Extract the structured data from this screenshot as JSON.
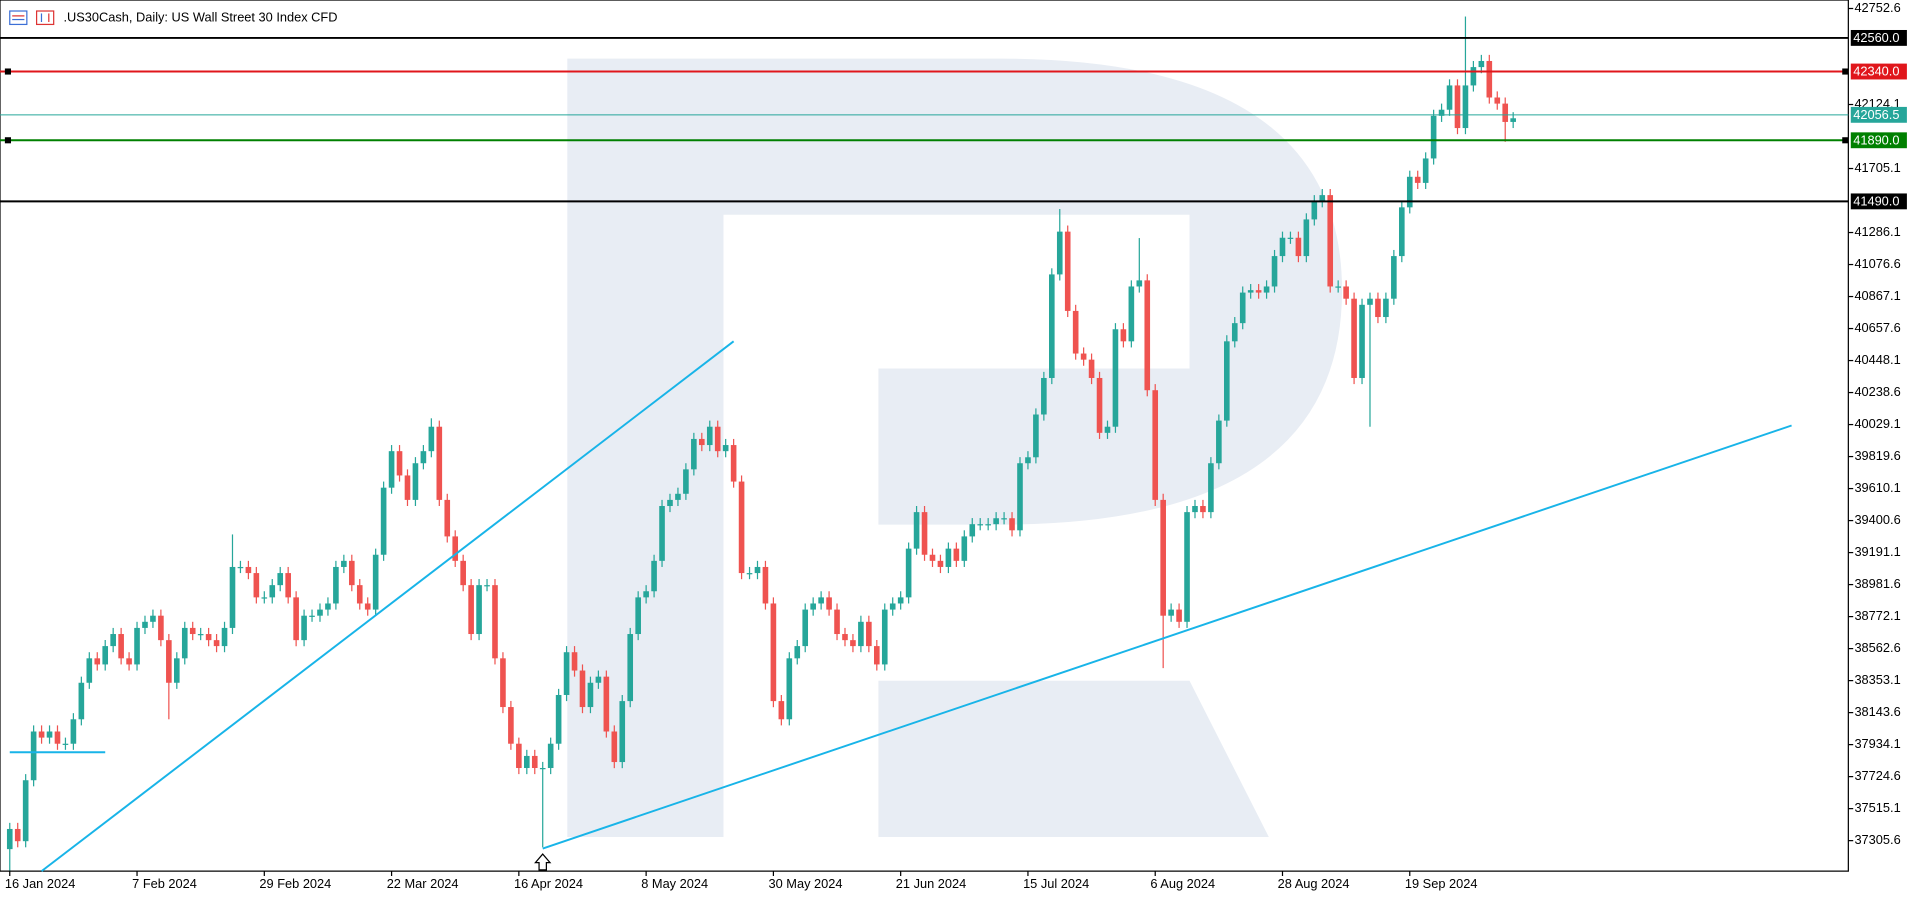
{
  "chart_data": {
    "type": "candlestick",
    "title": ".US30Cash, Daily:  US Wall Street 30 Index CFD",
    "bull_color": "#26a69a",
    "bear_color": "#ef5350",
    "ylim": [
      37106,
      42808
    ],
    "yticks": [
      42752.6,
      42124.1,
      41705.1,
      41286.1,
      41076.6,
      40867.1,
      40657.6,
      40448.1,
      40238.6,
      40029.1,
      39819.6,
      39610.1,
      39400.6,
      39191.1,
      38981.6,
      38772.1,
      38562.6,
      38353.1,
      38143.6,
      37934.1,
      37724.6,
      37515.1,
      37305.6
    ],
    "categories": [
      "16 Jan 2024",
      null,
      null,
      null,
      null,
      null,
      null,
      null,
      null,
      null,
      null,
      null,
      null,
      null,
      null,
      null,
      "7 Feb 2024",
      null,
      null,
      null,
      null,
      null,
      null,
      null,
      null,
      null,
      null,
      null,
      null,
      null,
      null,
      null,
      "29 Feb 2024",
      null,
      null,
      null,
      null,
      null,
      null,
      null,
      null,
      null,
      null,
      null,
      null,
      null,
      null,
      null,
      "22 Mar 2024",
      null,
      null,
      null,
      null,
      null,
      null,
      null,
      null,
      null,
      null,
      null,
      null,
      null,
      null,
      null,
      "16 Apr 2024",
      null,
      null,
      null,
      null,
      null,
      null,
      null,
      null,
      null,
      null,
      null,
      null,
      null,
      null,
      null,
      "8 May 2024",
      null,
      null,
      null,
      null,
      null,
      null,
      null,
      null,
      null,
      null,
      null,
      null,
      null,
      null,
      null,
      "30 May 2024",
      null,
      null,
      null,
      null,
      null,
      null,
      null,
      null,
      null,
      null,
      null,
      null,
      null,
      null,
      null,
      "21 Jun 2024",
      null,
      null,
      null,
      null,
      null,
      null,
      null,
      null,
      null,
      null,
      null,
      null,
      null,
      null,
      null,
      "15 Jul 2024",
      null,
      null,
      null,
      null,
      null,
      null,
      null,
      null,
      null,
      null,
      null,
      null,
      null,
      null,
      null,
      "6 Aug 2024",
      null,
      null,
      null,
      null,
      null,
      null,
      null,
      null,
      null,
      null,
      null,
      null,
      null,
      null,
      null,
      "28 Aug 2024",
      null,
      null,
      null,
      null,
      null,
      null,
      null,
      null,
      null,
      null,
      null,
      null,
      null,
      null,
      null,
      "19 Sep 2024",
      null,
      null,
      null,
      null,
      null,
      null,
      null,
      null,
      null,
      null,
      null,
      null,
      null
    ],
    "open": [
      37250,
      37382,
      37302,
      37701,
      38020,
      37980,
      38020,
      37940,
      37940,
      38100,
      38339,
      38499,
      38459,
      38579,
      38658,
      38499,
      38459,
      38698,
      38738,
      38778,
      38618,
      38339,
      38499,
      38698,
      38658,
      38658,
      38618,
      38579,
      38698,
      39097,
      39097,
      39057,
      38898,
      38898,
      38978,
      39057,
      38898,
      38618,
      38778,
      38778,
      38818,
      38858,
      39097,
      39137,
      38978,
      38858,
      38818,
      39177,
      39616,
      39855,
      39696,
      39536,
      39776,
      39855,
      40015,
      39536,
      39297,
      39137,
      38978,
      38658,
      38978,
      38978,
      38499,
      38180,
      37940,
      37781,
      37860,
      37781,
      37781,
      37940,
      38259,
      38539,
      38419,
      38180,
      38339,
      38379,
      38020,
      37820,
      38219,
      38658,
      38898,
      38938,
      39137,
      39496,
      39536,
      39576,
      39736,
      39935,
      39895,
      40015,
      39855,
      39895,
      39656,
      39057,
      39057,
      39097,
      38858,
      38219,
      38100,
      38499,
      38579,
      38818,
      38858,
      38898,
      38818,
      38658,
      38618,
      38579,
      38738,
      38579,
      38459,
      38818,
      38858,
      38898,
      39217,
      39456,
      39177,
      39137,
      39097,
      39217,
      39137,
      39297,
      39377,
      39377,
      39377,
      39416,
      39416,
      39337,
      39776,
      39815,
      40095,
      40334,
      41012,
      41292,
      40773,
      40494,
      40454,
      40334,
      39975,
      40015,
      40653,
      40574,
      40933,
      40973,
      40254,
      39536,
      38778,
      38818,
      38738,
      39456,
      39496,
      39456,
      39776,
      40055,
      40574,
      40693,
      40893,
      40909,
      40893,
      40933,
      41132,
      41252,
      41252,
      41132,
      41372,
      41491,
      41531,
      40933,
      40933,
      40853,
      40334,
      40813,
      40853,
      40733,
      40853,
      41132,
      41451,
      41651,
      41611,
      41771,
      42050,
      42090,
      42249,
      41970,
      42249,
      42369,
      42409,
      42170,
      42130,
      42010
    ],
    "high": [
      37422,
      37422,
      37741,
      38060,
      38060,
      38060,
      38060,
      37980,
      38140,
      38379,
      38539,
      38539,
      38619,
      38698,
      38698,
      38539,
      38738,
      38778,
      38818,
      38818,
      38658,
      38539,
      38738,
      38738,
      38698,
      38698,
      38658,
      38738,
      39310,
      39137,
      39137,
      39097,
      38938,
      39018,
      39097,
      39097,
      38938,
      38818,
      38818,
      38858,
      38898,
      39137,
      39177,
      39177,
      39018,
      38898,
      39217,
      39656,
      39895,
      39895,
      39736,
      39816,
      39895,
      40070,
      40055,
      39576,
      39337,
      39177,
      39018,
      39018,
      39018,
      39018,
      38539,
      38220,
      37980,
      37900,
      37900,
      37821,
      37980,
      38299,
      38579,
      38579,
      38459,
      38379,
      38419,
      38419,
      38060,
      38259,
      38698,
      38938,
      38978,
      39177,
      39536,
      39576,
      39616,
      39776,
      39975,
      39975,
      40055,
      40055,
      39935,
      39935,
      39696,
      39097,
      39137,
      39137,
      38898,
      38259,
      38539,
      38619,
      38858,
      38898,
      38938,
      38938,
      38858,
      38698,
      38658,
      38778,
      38778,
      38619,
      38858,
      38898,
      38938,
      39257,
      39496,
      39496,
      39217,
      39177,
      39257,
      39257,
      39337,
      39417,
      39417,
      39417,
      39456,
      39456,
      39456,
      39816,
      39855,
      40135,
      40374,
      41052,
      41440,
      41332,
      40813,
      40534,
      40494,
      40374,
      40055,
      40693,
      40693,
      40973,
      41250,
      41013,
      40294,
      39576,
      38858,
      38858,
      39496,
      39536,
      39536,
      39816,
      40095,
      40614,
      40733,
      40933,
      40949,
      40949,
      40973,
      41172,
      41292,
      41292,
      41292,
      41412,
      41531,
      41571,
      41571,
      40973,
      40973,
      40893,
      40853,
      40893,
      40893,
      40893,
      41172,
      41491,
      41691,
      41691,
      41811,
      42090,
      42130,
      42289,
      42289,
      42700,
      42409,
      42449,
      42449,
      42210,
      42170,
      42074
    ],
    "low": [
      37110,
      37262,
      37262,
      37661,
      37940,
      37940,
      37900,
      37900,
      37900,
      38060,
      38299,
      38419,
      38419,
      38539,
      38459,
      38419,
      38419,
      38658,
      38698,
      38578,
      38100,
      38299,
      38459,
      38618,
      38618,
      38578,
      38539,
      38539,
      38658,
      39057,
      39017,
      38858,
      38858,
      38858,
      38938,
      38858,
      38578,
      38578,
      38738,
      38738,
      38778,
      38818,
      39057,
      38938,
      38818,
      38778,
      38778,
      39137,
      39576,
      39656,
      39496,
      39496,
      39736,
      39815,
      39496,
      39257,
      39097,
      38938,
      38618,
      38618,
      38938,
      38459,
      38140,
      37900,
      37741,
      37741,
      37741,
      37262,
      37741,
      37900,
      38219,
      38379,
      38140,
      38140,
      38299,
      37980,
      37780,
      37780,
      38179,
      38618,
      38858,
      38898,
      39097,
      39456,
      39496,
      39536,
      39696,
      39855,
      39855,
      39815,
      39815,
      39616,
      39017,
      39017,
      39017,
      38818,
      38179,
      38060,
      38060,
      38459,
      38539,
      38778,
      38818,
      38778,
      38618,
      38578,
      38539,
      38539,
      38539,
      38419,
      38419,
      38778,
      38818,
      38858,
      39177,
      39137,
      39097,
      39057,
      39057,
      39097,
      39097,
      39257,
      39337,
      39337,
      39337,
      39376,
      39297,
      39297,
      39736,
      39775,
      40055,
      40294,
      40972,
      40733,
      40454,
      40414,
      40294,
      39935,
      39935,
      39975,
      40534,
      40534,
      40893,
      40214,
      39496,
      38435,
      38738,
      38698,
      38698,
      39416,
      39416,
      39416,
      39736,
      40015,
      40534,
      40653,
      40853,
      40853,
      40853,
      40893,
      41092,
      41212,
      41092,
      41092,
      41332,
      41451,
      40893,
      40893,
      40813,
      40294,
      40294,
      40015,
      40693,
      40693,
      40813,
      41092,
      41411,
      41571,
      41571,
      41731,
      42010,
      42050,
      41930,
      41930,
      42209,
      42329,
      42130,
      42090,
      41880,
      41970
    ],
    "close": [
      37382,
      37302,
      37701,
      38020,
      37980,
      38020,
      37940,
      37940,
      38100,
      38339,
      38499,
      38459,
      38579,
      38658,
      38499,
      38459,
      38698,
      38738,
      38778,
      38618,
      38339,
      38499,
      38698,
      38658,
      38658,
      38618,
      38579,
      38698,
      39097,
      39097,
      39057,
      38898,
      38898,
      38978,
      39057,
      38898,
      38618,
      38778,
      38778,
      38818,
      38858,
      39097,
      39137,
      38978,
      38858,
      38818,
      39177,
      39616,
      39855,
      39696,
      39536,
      39776,
      39855,
      40015,
      39536,
      39297,
      39137,
      38978,
      38658,
      38978,
      38978,
      38499,
      38180,
      37940,
      37781,
      37860,
      37781,
      37781,
      37940,
      38259,
      38539,
      38419,
      38180,
      38339,
      38379,
      38020,
      37820,
      38219,
      38658,
      38898,
      38938,
      39137,
      39496,
      39536,
      39576,
      39736,
      39935,
      39895,
      40015,
      39855,
      39895,
      39656,
      39057,
      39057,
      39097,
      38858,
      38219,
      38100,
      38499,
      38579,
      38818,
      38858,
      38898,
      38818,
      38658,
      38618,
      38579,
      38738,
      38579,
      38459,
      38818,
      38858,
      38898,
      39217,
      39456,
      39177,
      39137,
      39097,
      39217,
      39137,
      39297,
      39377,
      39377,
      39377,
      39416,
      39416,
      39337,
      39776,
      39815,
      40095,
      40334,
      41012,
      41292,
      40773,
      40494,
      40454,
      40334,
      39975,
      40015,
      40653,
      40574,
      40933,
      40973,
      40254,
      39536,
      38778,
      38818,
      38738,
      39456,
      39496,
      39456,
      39776,
      40055,
      40574,
      40693,
      40893,
      40909,
      40893,
      40933,
      41132,
      41252,
      41252,
      41132,
      41372,
      41491,
      41531,
      40933,
      40933,
      40853,
      40334,
      40813,
      40853,
      40733,
      40853,
      41132,
      41451,
      41651,
      41611,
      41771,
      42050,
      42090,
      42249,
      41970,
      42249,
      42369,
      42409,
      42170,
      42130,
      42010,
      42034
    ],
    "levels": [
      {
        "value": 42560,
        "label": "42560.0",
        "color": "#000000"
      },
      {
        "value": 42340,
        "label": "42340.0",
        "color": "#e0161b"
      },
      {
        "value": 42056.5,
        "label": "42056.5",
        "color": "#26a69a"
      },
      {
        "value": 41890,
        "label": "41890.0",
        "color": "#008000"
      },
      {
        "value": 41490,
        "label": "41490.0",
        "color": "#000000"
      }
    ],
    "trendlines": [
      {
        "x": [
          4,
          91
        ],
        "y": [
          37106,
          40574
        ],
        "color": "#18b4e8"
      },
      {
        "x": [
          67,
          224
        ],
        "y": [
          37254,
          40023
        ],
        "color": "#18b4e8"
      },
      {
        "x": [
          0,
          12
        ],
        "y": [
          37884,
          37884
        ],
        "color": "#18b4e8"
      }
    ],
    "marker_index": 67
  }
}
